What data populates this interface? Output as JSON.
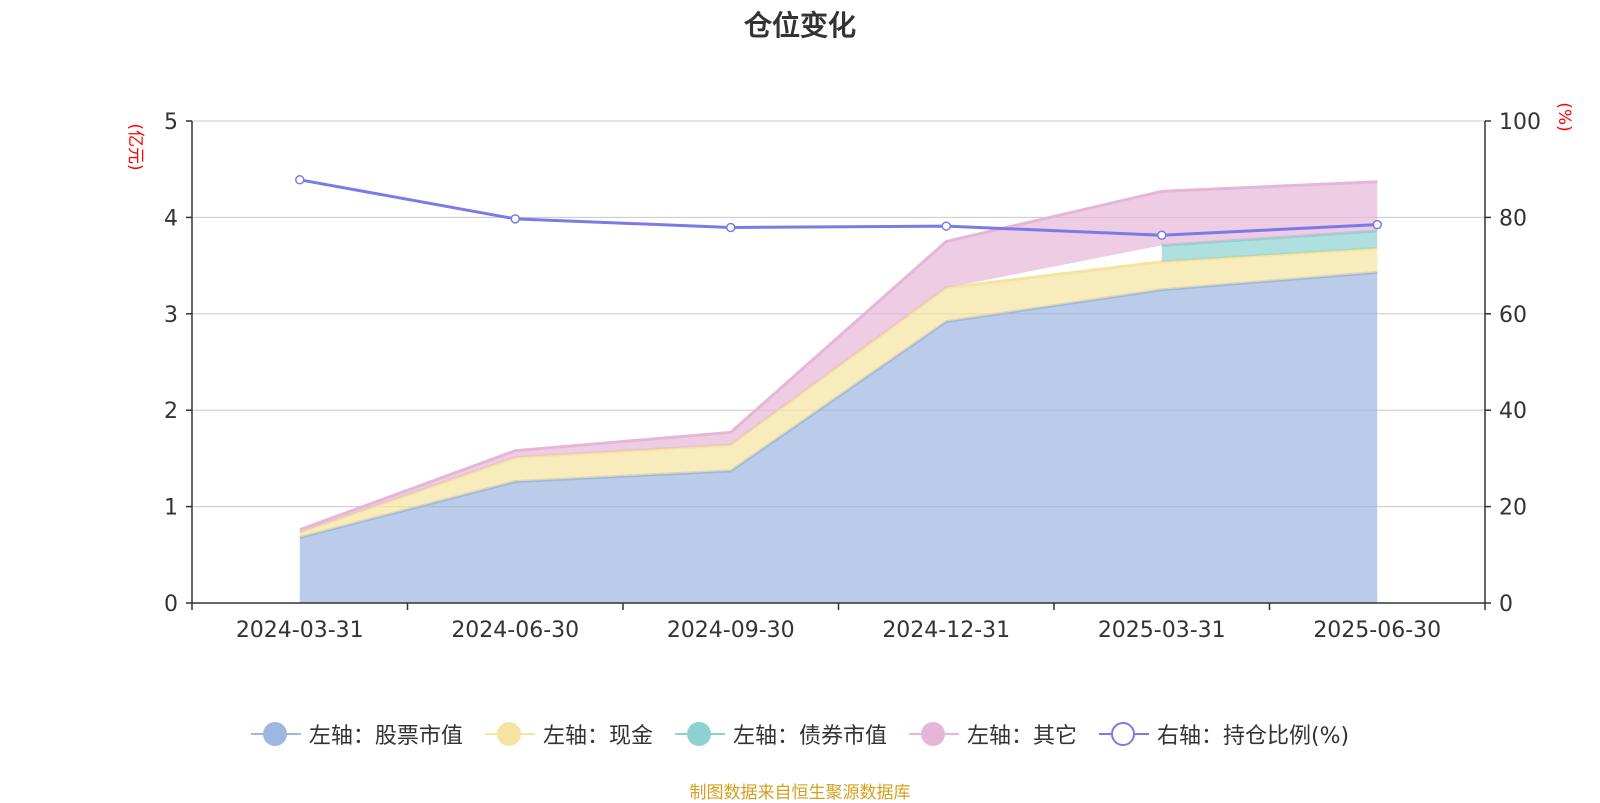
{
  "title": "仓位变化",
  "source_note": "制图数据来自恒生聚源数据库",
  "colors": {
    "stock": "#9db7df",
    "cash": "#f5e3a0",
    "bond": "#8ed1d1",
    "other": "#e6b6d8",
    "ratio": "#7a7ae8",
    "axis_label": "#ff0000",
    "grid": "#c8c8c8"
  },
  "legend": [
    {
      "label": "左轴：股票市值",
      "color": "#9db7df",
      "hollow": false
    },
    {
      "label": "左轴：现金",
      "color": "#f5e3a0",
      "hollow": false
    },
    {
      "label": "左轴：债券市值",
      "color": "#8ed1d1",
      "hollow": false
    },
    {
      "label": "左轴：其它",
      "color": "#e6b6d8",
      "hollow": false
    },
    {
      "label": "右轴：持仓比例(%)",
      "color": "#7a7ae8",
      "hollow": true
    }
  ],
  "chart_data": {
    "type": "area",
    "categories": [
      "2024-03-31",
      "2024-06-30",
      "2024-09-30",
      "2024-12-31",
      "2025-03-31",
      "2025-06-30"
    ],
    "left_axis": {
      "label": "(亿元)",
      "min": 0,
      "max": 5,
      "ticks": [
        0,
        1,
        2,
        3,
        4,
        5
      ]
    },
    "right_axis": {
      "label": "(%)",
      "min": 0,
      "max": 100,
      "ticks": [
        0,
        20,
        40,
        60,
        80,
        100
      ]
    },
    "series": [
      {
        "name": "左轴：股票市值",
        "axis": "left",
        "stacked": true,
        "values": [
          0.68,
          1.26,
          1.37,
          2.92,
          3.25,
          3.43
        ]
      },
      {
        "name": "左轴：现金",
        "axis": "left",
        "stacked": true,
        "values": [
          0.05,
          0.25,
          0.27,
          0.35,
          0.29,
          0.25
        ]
      },
      {
        "name": "左轴：债券市值",
        "axis": "left",
        "stacked": true,
        "values": [
          null,
          null,
          null,
          null,
          0.17,
          0.18
        ]
      },
      {
        "name": "左轴：其它",
        "axis": "left",
        "stacked": true,
        "values": [
          0.03,
          0.07,
          0.13,
          0.48,
          0.56,
          0.51
        ]
      },
      {
        "name": "右轴：持仓比例(%)",
        "axis": "right",
        "type": "line",
        "values": [
          87.8,
          79.7,
          77.9,
          78.2,
          76.3,
          78.5
        ]
      }
    ],
    "grid": true,
    "legend_position": "bottom"
  }
}
